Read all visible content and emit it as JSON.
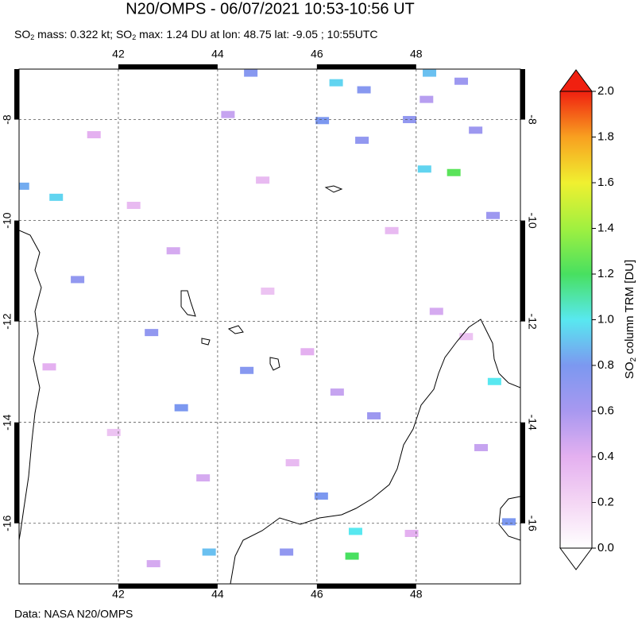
{
  "chart_data": {
    "type": "map",
    "title": "N20/OMPS - 06/07/2021 10:53-10:56 UT",
    "subtitle_parts": [
      "SO",
      "2",
      " mass: 0.322 kt; SO",
      "2",
      " max: 1.24 DU at lon: 48.75 lat: -9.05 ; 10:55UTC"
    ],
    "xlim": [
      40,
      50.1
    ],
    "ylim": [
      -17.2,
      -7
    ],
    "xticks": [
      42,
      44,
      46,
      48
    ],
    "yticks": [
      -8,
      -10,
      -12,
      -14,
      -16
    ],
    "grid": true,
    "pixels": {
      "lon": [
        48.75,
        46.7,
        48.16,
        48.26,
        46.38,
        49.57,
        40.74,
        46.77,
        46.1,
        46.94,
        48.9,
        49.19,
        47.86,
        46.9,
        44.66,
        42.66,
        44.58,
        46.08,
        43.82,
        49.86,
        47.14,
        43.26,
        41.17,
        40.06,
        49.54,
        45.38,
        41.5,
        42.3,
        43.1,
        44.2,
        45.0,
        45.8,
        47.5,
        48.4,
        49.3,
        40.6,
        41.9,
        43.7,
        44.9,
        46.4,
        47.9,
        49.0,
        42.7,
        45.5,
        48.2
      ],
      "lat": [
        -9.05,
        -16.65,
        -8.98,
        -7.08,
        -7.27,
        -13.19,
        -9.54,
        -16.16,
        -8.02,
        -7.41,
        -7.24,
        -8.21,
        -8.0,
        -8.41,
        -7.08,
        -12.22,
        -12.97,
        -15.46,
        -16.57,
        -15.97,
        -13.87,
        -13.71,
        -11.17,
        -9.32,
        -9.9,
        -16.57,
        -8.3,
        -9.7,
        -10.6,
        -7.9,
        -11.4,
        -12.6,
        -10.2,
        -11.8,
        -14.5,
        -12.9,
        -14.2,
        -15.1,
        -9.2,
        -13.4,
        -16.2,
        -12.3,
        -16.8,
        -14.8,
        -7.6
      ],
      "values": [
        1.24,
        1.2,
        0.95,
        0.9,
        0.95,
        1.0,
        0.95,
        1.0,
        0.8,
        0.75,
        0.65,
        0.65,
        0.7,
        0.7,
        0.75,
        0.7,
        0.75,
        0.8,
        0.9,
        0.8,
        0.65,
        0.8,
        0.7,
        0.85,
        0.65,
        0.7,
        0.4,
        0.35,
        0.45,
        0.5,
        0.3,
        0.4,
        0.35,
        0.45,
        0.5,
        0.4,
        0.3,
        0.45,
        0.35,
        0.5,
        0.4,
        0.3,
        0.45,
        0.35,
        0.55
      ]
    },
    "colorbar": {
      "lim": [
        0,
        2
      ],
      "colors": [
        "#ffffff",
        "#f4d6f4",
        "#e4b0f0",
        "#a898f0",
        "#7c98f0",
        "#58e8f0",
        "#48e060",
        "#a0f040",
        "#f0f030",
        "#f8a020",
        "#f02010"
      ],
      "ticks": [
        {
          "value": 0,
          "label": "0.0"
        },
        {
          "value": 0.2,
          "label": "0.2"
        },
        {
          "value": 0.4,
          "label": "0.4"
        },
        {
          "value": 0.6,
          "label": "0.6"
        },
        {
          "value": 0.8,
          "label": "0.8"
        },
        {
          "value": 1.0,
          "label": "1.0"
        },
        {
          "value": 1.2,
          "label": "1.2"
        },
        {
          "value": 1.4,
          "label": "1.4"
        },
        {
          "value": 1.6,
          "label": "1.6"
        },
        {
          "value": 1.8,
          "label": "1.8"
        },
        {
          "value": 2.0,
          "label": "2.0"
        }
      ],
      "label_parts": [
        "SO",
        "2",
        " column TRM [DU]"
      ]
    },
    "source": "Data: NASA N20/OMPS",
    "source_color": "#e03020"
  }
}
